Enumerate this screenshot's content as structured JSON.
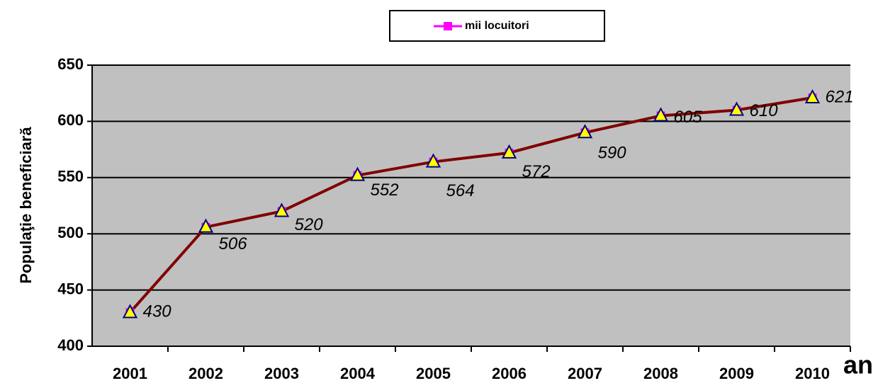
{
  "chart_data": {
    "type": "line",
    "categories": [
      "2001",
      "2002",
      "2003",
      "2004",
      "2005",
      "2006",
      "2007",
      "2008",
      "2009",
      "2010"
    ],
    "series": [
      {
        "name": "mii locuitori",
        "color": "#800000",
        "marker_color": "#ff00ff",
        "triangle_color": "#ffff00",
        "values": [
          430,
          506,
          520,
          552,
          564,
          572,
          590,
          605,
          610,
          621
        ]
      }
    ],
    "ylim": [
      400,
      650
    ],
    "yticks": [
      400,
      450,
      500,
      550,
      600,
      650
    ],
    "grid": true,
    "y_label": "Populaţie beneficiară",
    "x_label": "an",
    "legend": "top"
  }
}
